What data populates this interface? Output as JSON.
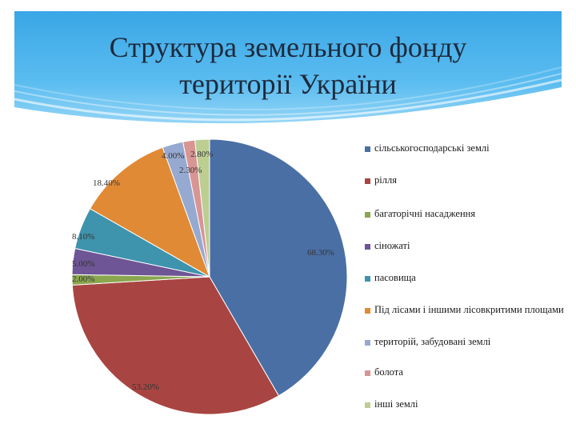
{
  "slide": {
    "title_line1": "Структура земельного фонду",
    "title_line2": "території України"
  },
  "chart_data": {
    "type": "pie",
    "title": "Структура земельного фонду території України",
    "slices": [
      {
        "label": "сільськогосподарські землі",
        "value": 68.3,
        "value_label": "68.30%",
        "color": "#4a6fa5"
      },
      {
        "label": "рілля",
        "value": 53.2,
        "value_label": "53.20%",
        "color": "#a84542"
      },
      {
        "label": "багаторічні насадження",
        "value": 2.0,
        "value_label": "2.00%",
        "color": "#8aa64e"
      },
      {
        "label": "сіножаті",
        "value": 5.0,
        "value_label": "5.00%",
        "color": "#6e5595"
      },
      {
        "label": "пасовища",
        "value": 8.1,
        "value_label": "8.10%",
        "color": "#3e93ad"
      },
      {
        "label": "Під лісами і іншими лісовкритими площами",
        "value": 18.4,
        "value_label": "18.40%",
        "color": "#e08a35"
      },
      {
        "label": "територій, забудовані землі",
        "value": 4.0,
        "value_label": "4.00%",
        "color": "#96a9d0"
      },
      {
        "label": "болота",
        "value": 2.3,
        "value_label": "2.30%",
        "color": "#d79594"
      },
      {
        "label": "інші землі",
        "value": 2.8,
        "value_label": "2.80%",
        "color": "#bcce92"
      }
    ],
    "legend_position": "right"
  }
}
